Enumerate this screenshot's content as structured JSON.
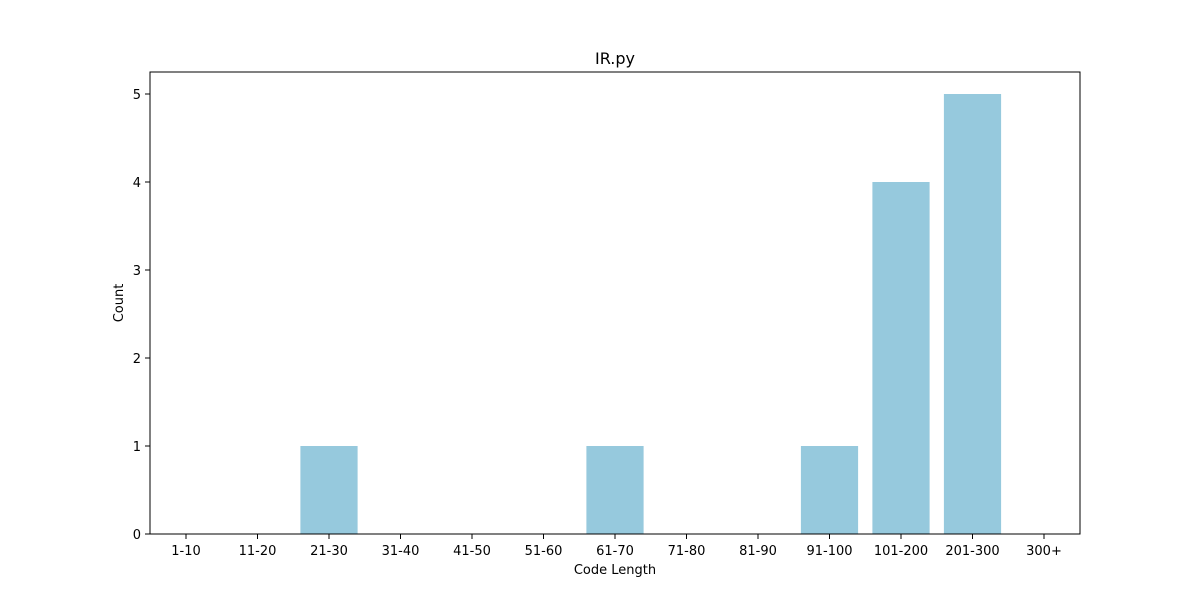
{
  "chart_data": {
    "type": "bar",
    "title": "IR.py",
    "xlabel": "Code Length",
    "ylabel": "Count",
    "categories": [
      "1-10",
      "11-20",
      "21-30",
      "31-40",
      "41-50",
      "51-60",
      "61-70",
      "71-80",
      "81-90",
      "91-100",
      "101-200",
      "201-300",
      "300+"
    ],
    "values": [
      0,
      0,
      1,
      0,
      0,
      0,
      1,
      0,
      0,
      1,
      4,
      5,
      0
    ],
    "ylim": [
      0,
      5.25
    ],
    "yticks": [
      0,
      1,
      2,
      3,
      4,
      5
    ],
    "grid": false,
    "bar_color": "#96c9dd"
  }
}
